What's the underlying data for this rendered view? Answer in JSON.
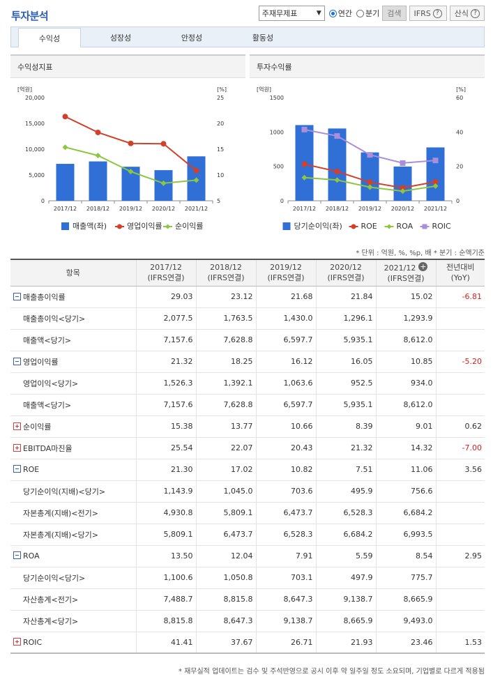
{
  "header": {
    "title": "투자분석",
    "select_value": "주재무제표",
    "radio_annual": "연간",
    "radio_quarter": "분기",
    "search_label": "검색",
    "ifrs_label": "IFRS",
    "formula_label": "산식",
    "help_glyph": "?"
  },
  "tabs": [
    "수익성",
    "성장성",
    "안정성",
    "활동성"
  ],
  "colors": {
    "bar": "#2f6fd6",
    "red": "#d2402a",
    "green": "#8dc63f",
    "purple": "#a98fdb"
  },
  "chart_data": [
    {
      "type": "bar",
      "title": "수익성지표",
      "categories": [
        "2017/12",
        "2018/12",
        "2019/12",
        "2020/12",
        "2021/12"
      ],
      "left_unit": "[억원]",
      "right_unit": "[%]",
      "left_ticks": [
        "20,000",
        "15,000",
        "10,000",
        "5,000",
        "0"
      ],
      "right_ticks": [
        "25",
        "20",
        "15",
        "10",
        "5"
      ],
      "ylim_left": [
        0,
        20000
      ],
      "ylim_right": [
        5,
        25
      ],
      "series": [
        {
          "name": "매출액(좌)",
          "type": "bar",
          "axis": "left",
          "color": "#2f6fd6",
          "values": [
            7157.6,
            7628.8,
            6597.7,
            5935.1,
            8612.0
          ]
        },
        {
          "name": "영업이익률",
          "type": "line",
          "axis": "right",
          "color": "#d2402a",
          "marker": "circle",
          "values": [
            21.32,
            18.25,
            16.12,
            16.05,
            10.85
          ]
        },
        {
          "name": "순이익률",
          "type": "line",
          "axis": "right",
          "color": "#8dc63f",
          "marker": "diamond",
          "values": [
            15.38,
            13.77,
            10.66,
            8.39,
            9.01
          ]
        }
      ]
    },
    {
      "type": "bar",
      "title": "투자수익률",
      "categories": [
        "2017/12",
        "2018/12",
        "2019/12",
        "2020/12",
        "2021/12"
      ],
      "left_unit": "[억원]",
      "right_unit": "[%]",
      "left_ticks": [
        "1500",
        "1000",
        "500",
        "0"
      ],
      "right_ticks": [
        "60",
        "40",
        "20",
        "0"
      ],
      "ylim_left": [
        0,
        1500
      ],
      "ylim_right": [
        0,
        60
      ],
      "series": [
        {
          "name": "당기순이익(좌)",
          "type": "bar",
          "axis": "left",
          "color": "#2f6fd6",
          "values": [
            1100.6,
            1050.8,
            703.1,
            497.9,
            775.7
          ]
        },
        {
          "name": "ROE",
          "type": "line",
          "axis": "right",
          "color": "#d2402a",
          "marker": "circle",
          "values": [
            21.3,
            17.02,
            10.82,
            7.51,
            11.06
          ]
        },
        {
          "name": "ROA",
          "type": "line",
          "axis": "right",
          "color": "#8dc63f",
          "marker": "diamond",
          "values": [
            13.5,
            12.04,
            7.91,
            5.59,
            8.54
          ]
        },
        {
          "name": "ROIC",
          "type": "line",
          "axis": "right",
          "color": "#a98fdb",
          "marker": "square",
          "values": [
            41.41,
            37.67,
            26.71,
            21.93,
            23.46
          ]
        }
      ]
    }
  ],
  "unit_note": "* 단위 : 억원, %, %p, 배   * 분기 : 순액기준",
  "table": {
    "headers": [
      "항목",
      "2017/12\n(IFRS연결)",
      "2018/12\n(IFRS연결)",
      "2019/12\n(IFRS연결)",
      "2020/12\n(IFRS연결)",
      "2021/12\n(IFRS연결)",
      "전년대비\n(YoY)"
    ],
    "rows": [
      {
        "label": "매출총이익률",
        "kind": "minus",
        "values": [
          "29.03",
          "23.12",
          "21.68",
          "21.84",
          "15.02",
          "-6.81"
        ]
      },
      {
        "label": "매출총이익<당기>",
        "kind": "sub",
        "values": [
          "2,077.5",
          "1,763.5",
          "1,430.0",
          "1,296.1",
          "1,293.9",
          ""
        ]
      },
      {
        "label": "매출액<당기>",
        "kind": "sub",
        "values": [
          "7,157.6",
          "7,628.8",
          "6,597.7",
          "5,935.1",
          "8,612.0",
          ""
        ]
      },
      {
        "label": "영업이익률",
        "kind": "minus",
        "values": [
          "21.32",
          "18.25",
          "16.12",
          "16.05",
          "10.85",
          "-5.20"
        ]
      },
      {
        "label": "영업이익<당기>",
        "kind": "sub",
        "values": [
          "1,526.3",
          "1,392.1",
          "1,063.6",
          "952.5",
          "934.0",
          ""
        ]
      },
      {
        "label": "매출액<당기>",
        "kind": "sub",
        "values": [
          "7,157.6",
          "7,628.8",
          "6,597.7",
          "5,935.1",
          "8,612.0",
          ""
        ]
      },
      {
        "label": "순이익률",
        "kind": "plus",
        "values": [
          "15.38",
          "13.77",
          "10.66",
          "8.39",
          "9.01",
          "0.62"
        ]
      },
      {
        "label": "EBITDA마진율",
        "kind": "plus",
        "values": [
          "25.54",
          "22.07",
          "20.43",
          "21.32",
          "14.32",
          "-7.00"
        ]
      },
      {
        "label": "ROE",
        "kind": "minus",
        "values": [
          "21.30",
          "17.02",
          "10.82",
          "7.51",
          "11.06",
          "3.56"
        ]
      },
      {
        "label": "당기순이익(지배)<당기>",
        "kind": "sub",
        "values": [
          "1,143.9",
          "1,045.0",
          "703.6",
          "495.9",
          "756.6",
          ""
        ]
      },
      {
        "label": "자본총계(지배)<전기>",
        "kind": "sub",
        "values": [
          "4,930.8",
          "5,809.1",
          "6,473.7",
          "6,528.3",
          "6,684.2",
          ""
        ]
      },
      {
        "label": "자본총계(지배)<당기>",
        "kind": "sub",
        "values": [
          "5,809.1",
          "6,473.7",
          "6,528.3",
          "6,684.2",
          "6,993.5",
          ""
        ]
      },
      {
        "label": "ROA",
        "kind": "minus",
        "values": [
          "13.50",
          "12.04",
          "7.91",
          "5.59",
          "8.54",
          "2.95"
        ]
      },
      {
        "label": "당기순이익<당기>",
        "kind": "sub",
        "values": [
          "1,100.6",
          "1,050.8",
          "703.1",
          "497.9",
          "775.7",
          ""
        ]
      },
      {
        "label": "자산총계<전기>",
        "kind": "sub",
        "values": [
          "7,488.7",
          "8,815.8",
          "8,647.3",
          "9,138.7",
          "8,665.9",
          ""
        ]
      },
      {
        "label": "자산총계<당기>",
        "kind": "sub",
        "values": [
          "8,815.8",
          "8,647.3",
          "9,138.7",
          "8,665.9",
          "9,493.0",
          ""
        ]
      },
      {
        "label": "ROIC",
        "kind": "plus",
        "values": [
          "41.41",
          "37.67",
          "26.71",
          "21.93",
          "23.46",
          "1.53"
        ]
      }
    ]
  },
  "footnote": "* 재무실적 업데이트는 검수 및 주석반영으로 공시 이후 약 일주일 정도 소요되며, 기업별로 다르게 적용됨"
}
